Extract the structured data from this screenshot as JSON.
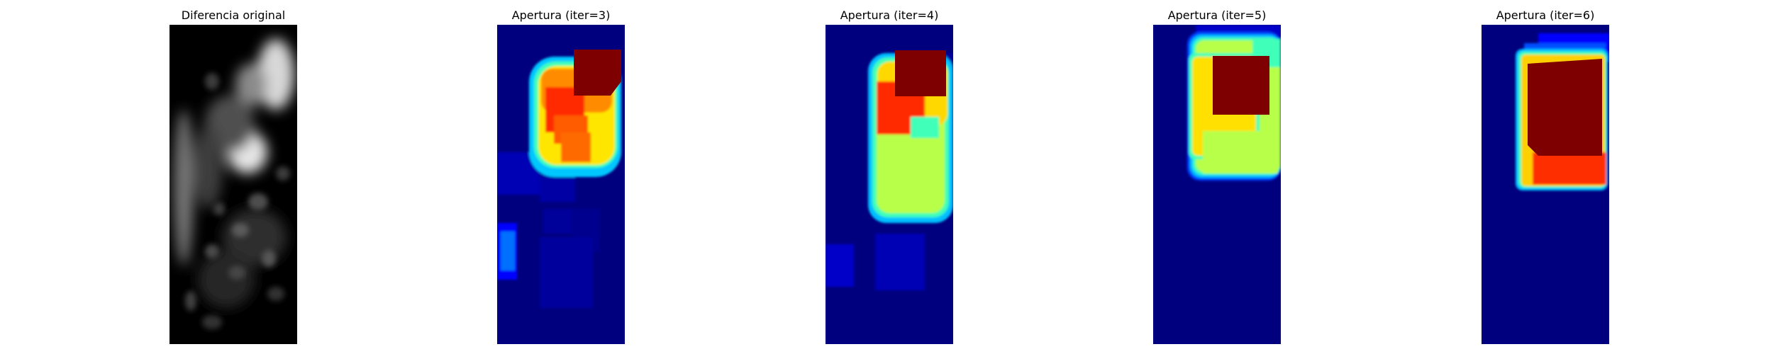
{
  "panels": [
    {
      "title": "Diferencia original",
      "colormap": "gray"
    },
    {
      "title": "Apertura (iter=3)",
      "colormap": "jet"
    },
    {
      "title": "Apertura (iter=4)",
      "colormap": "jet"
    },
    {
      "title": "Apertura (iter=5)",
      "colormap": "jet"
    },
    {
      "title": "Apertura (iter=6)",
      "colormap": "jet"
    }
  ],
  "colors": {
    "background": "#ffffff",
    "jet_dark_blue": "#00007f",
    "jet_dark_red": "#7f0000"
  }
}
